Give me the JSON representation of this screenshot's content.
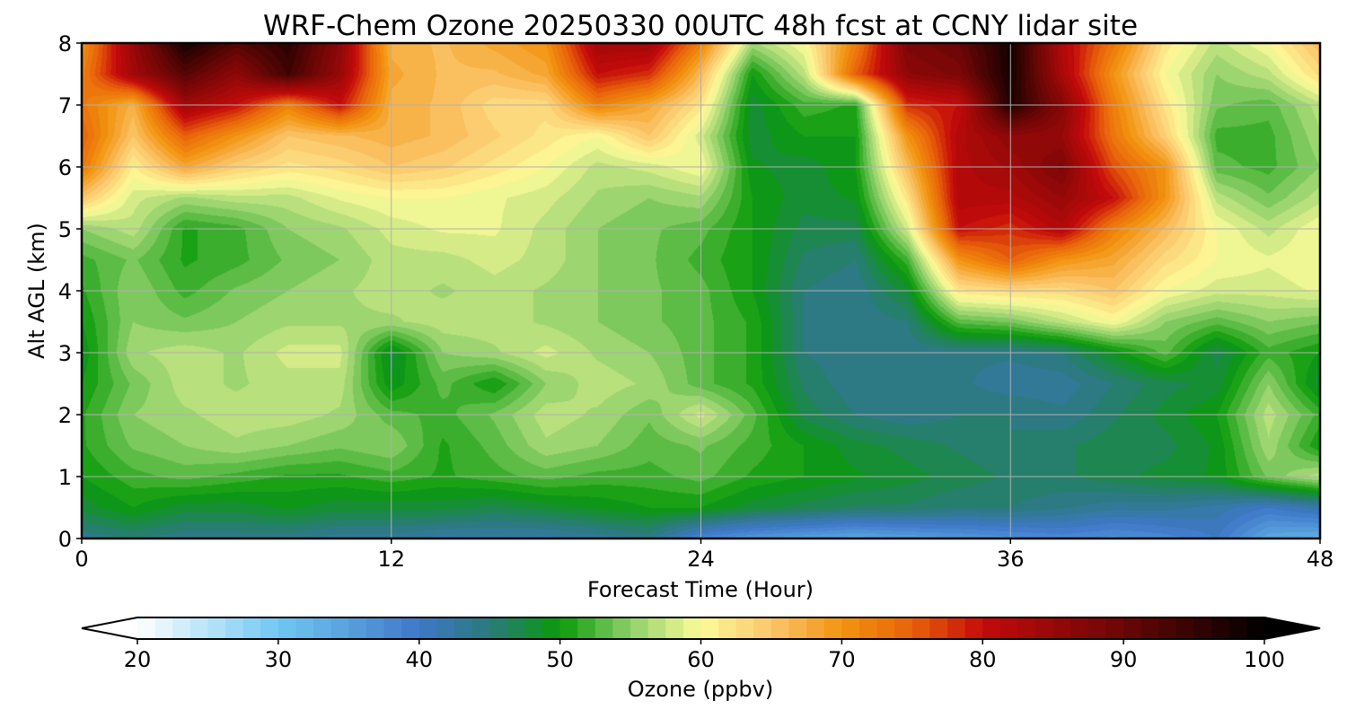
{
  "chart_data": {
    "type": "heatmap",
    "title": "WRF-Chem Ozone  20250330 00UTC 48h fcst at CCNY lidar site",
    "xlabel": "Forecast Time (Hour)",
    "ylabel": "Alt AGL (km)",
    "xlim": [
      0,
      48
    ],
    "ylim": [
      0,
      8
    ],
    "xticks": [
      "0",
      "12",
      "24",
      "36",
      "48"
    ],
    "yticks": [
      "0",
      "1",
      "2",
      "3",
      "4",
      "5",
      "6",
      "7",
      "8"
    ],
    "grid": true,
    "x": [
      0,
      2,
      4,
      6,
      8,
      10,
      12,
      14,
      16,
      18,
      20,
      22,
      24,
      26,
      28,
      30,
      32,
      34,
      36,
      38,
      40,
      42,
      44,
      46,
      48
    ],
    "y": [
      0,
      0.5,
      1,
      1.5,
      2,
      2.5,
      3,
      3.5,
      4,
      4.5,
      5,
      5.5,
      6,
      6.5,
      7,
      7.5,
      8
    ],
    "z": [
      [
        44,
        45,
        44,
        44,
        44,
        43,
        43,
        42,
        42,
        42,
        43,
        44,
        38,
        36,
        35,
        34,
        35,
        36,
        37,
        38,
        37,
        38,
        40,
        34,
        33
      ],
      [
        48,
        50,
        48,
        48,
        49,
        48,
        48,
        48,
        47,
        48,
        49,
        50,
        50,
        48,
        47,
        46,
        46,
        45,
        45,
        44,
        43,
        43,
        42,
        40,
        42
      ],
      [
        50,
        52,
        53,
        52,
        51,
        51,
        52,
        51,
        52,
        53,
        52,
        52,
        53,
        51,
        50,
        49,
        48,
        47,
        46,
        46,
        47,
        48,
        49,
        54,
        57
      ],
      [
        51,
        54,
        55,
        56,
        55,
        54,
        55,
        51,
        53,
        56,
        55,
        53,
        54,
        52,
        50,
        48,
        47,
        46,
        45,
        46,
        47,
        47,
        49,
        56,
        50
      ],
      [
        51,
        55,
        56,
        57,
        57,
        56,
        53,
        52,
        54,
        57,
        56,
        54,
        58,
        53,
        47,
        45,
        44,
        45,
        45,
        44,
        46,
        48,
        50,
        57,
        52
      ],
      [
        50,
        54,
        57,
        56,
        57,
        57,
        49,
        53,
        50,
        55,
        57,
        56,
        53,
        51,
        46,
        44,
        44,
        44,
        43,
        43,
        45,
        47,
        48,
        55,
        48
      ],
      [
        49,
        56,
        57,
        56,
        58,
        58,
        48,
        55,
        56,
        58,
        56,
        55,
        53,
        51,
        45,
        44,
        44,
        44,
        44,
        45,
        49,
        53,
        47,
        52,
        50
      ],
      [
        50,
        55,
        54,
        55,
        56,
        56,
        56,
        57,
        57,
        56,
        55,
        54,
        53,
        51,
        45,
        44,
        45,
        53,
        54,
        57,
        60,
        55,
        53,
        55,
        54
      ],
      [
        51,
        55,
        52,
        54,
        55,
        56,
        57,
        56,
        57,
        56,
        55,
        54,
        53,
        50,
        45,
        44,
        48,
        62,
        63,
        63,
        65,
        60,
        58,
        58,
        59
      ],
      [
        52,
        54,
        51,
        52,
        54,
        55,
        57,
        57,
        58,
        57,
        55,
        54,
        52,
        50,
        46,
        45,
        52,
        70,
        75,
        70,
        68,
        63,
        60,
        59,
        60
      ],
      [
        55,
        57,
        51,
        52,
        55,
        56,
        58,
        59,
        59,
        57,
        55,
        54,
        53,
        50,
        47,
        47,
        58,
        80,
        78,
        82,
        72,
        66,
        60,
        57,
        60
      ],
      [
        65,
        58,
        56,
        57,
        57,
        59,
        60,
        60,
        59,
        58,
        56,
        55,
        56,
        50,
        48,
        49,
        62,
        82,
        82,
        85,
        80,
        70,
        57,
        54,
        57
      ],
      [
        73,
        61,
        68,
        64,
        62,
        63,
        65,
        64,
        62,
        60,
        57,
        58,
        60,
        49,
        48,
        50,
        66,
        82,
        84,
        88,
        76,
        70,
        53,
        52,
        55
      ],
      [
        75,
        65,
        75,
        70,
        65,
        66,
        67,
        66,
        64,
        62,
        60,
        65,
        58,
        48,
        50,
        50,
        70,
        82,
        86,
        85,
        73,
        64,
        52,
        52,
        56
      ],
      [
        73,
        67,
        84,
        80,
        72,
        80,
        67,
        66,
        63,
        63,
        72,
        68,
        62,
        48,
        52,
        51,
        78,
        80,
        97,
        87,
        72,
        62,
        54,
        53,
        57
      ],
      [
        72,
        84,
        92,
        86,
        94,
        85,
        68,
        66,
        66,
        68,
        80,
        78,
        66,
        50,
        57,
        75,
        86,
        88,
        98,
        83,
        70,
        60,
        55,
        57,
        63
      ],
      [
        70,
        85,
        98,
        92,
        96,
        86,
        67,
        66,
        68,
        70,
        84,
        84,
        72,
        56,
        60,
        72,
        88,
        90,
        98,
        82,
        73,
        62,
        57,
        60,
        66
      ]
    ],
    "colorbar": {
      "label": "Ozone  (ppbv)",
      "min": 20,
      "max": 100,
      "ticks": [
        "20",
        "30",
        "40",
        "50",
        "60",
        "70",
        "80",
        "90",
        "100"
      ],
      "extend": "both",
      "levels": 64,
      "colors": [
        {
          "v": 20,
          "c": "#ffffff"
        },
        {
          "v": 30,
          "c": "#70c8f2"
        },
        {
          "v": 40,
          "c": "#3f78c8"
        },
        {
          "v": 45,
          "c": "#2a7a7a"
        },
        {
          "v": 50,
          "c": "#0a9a0a"
        },
        {
          "v": 55,
          "c": "#8fd06a"
        },
        {
          "v": 60,
          "c": "#fdfb9a"
        },
        {
          "v": 65,
          "c": "#fbc56a"
        },
        {
          "v": 70,
          "c": "#f29410"
        },
        {
          "v": 75,
          "c": "#e8620a"
        },
        {
          "v": 80,
          "c": "#c40a0a"
        },
        {
          "v": 90,
          "c": "#6a0606"
        },
        {
          "v": 100,
          "c": "#000000"
        }
      ]
    }
  }
}
